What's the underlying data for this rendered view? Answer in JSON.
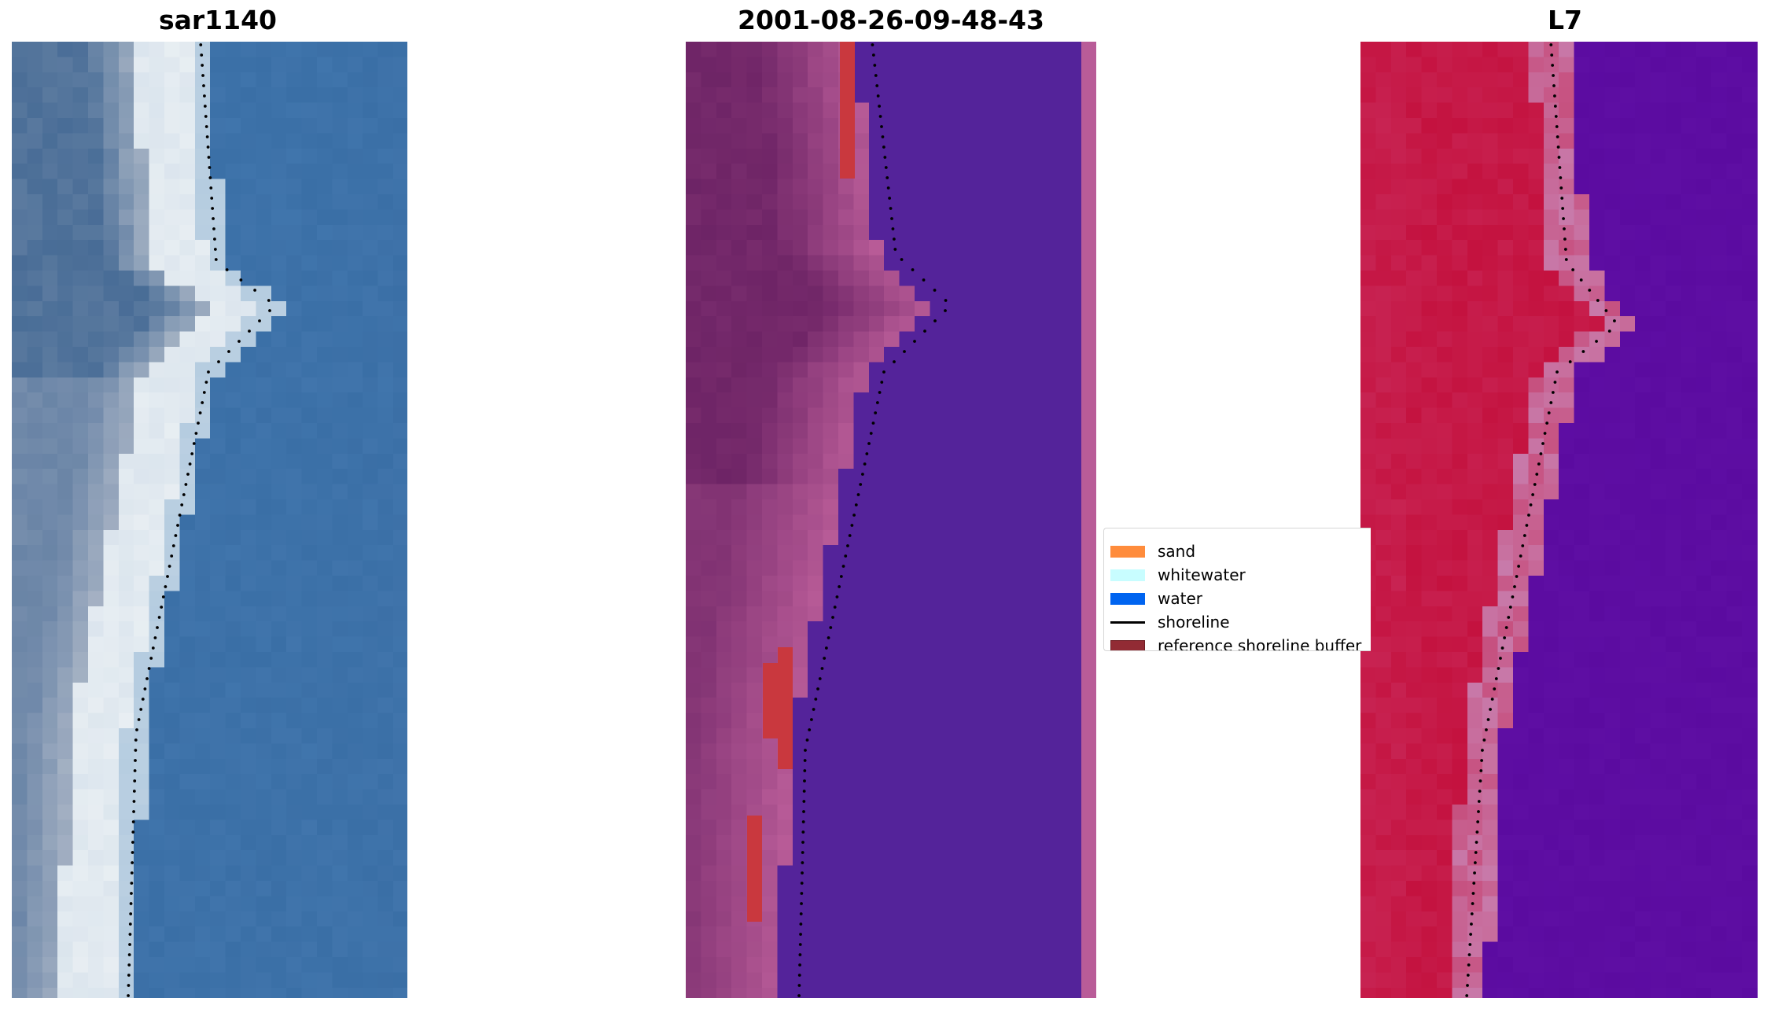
{
  "panels": [
    {
      "title": "sar1140",
      "style": "rgb"
    },
    {
      "title": "2001-08-26-09-48-43",
      "style": "classified"
    },
    {
      "title": "L7",
      "style": "index"
    }
  ],
  "legend": {
    "items": [
      {
        "label": "sand",
        "color": "#ff8c3c",
        "kind": "patch"
      },
      {
        "label": "whitewater",
        "color": "#c8fdff",
        "kind": "patch"
      },
      {
        "label": "water",
        "color": "#0064f0",
        "kind": "patch"
      },
      {
        "label": "shoreline",
        "color": "#000000",
        "kind": "line"
      },
      {
        "label": "reference shoreline buffer",
        "color": "#922b34",
        "kind": "patch-edged"
      }
    ]
  },
  "colors": {
    "water_rgb": "#3a6fa6",
    "sand_rgb": "#e9eff3",
    "classified_water": "#54239a",
    "classified_land_dark": "#6b2264",
    "classified_land_light": "#b95c98",
    "classified_buffer": "#c9383e",
    "index_land": "#c4123f",
    "index_water": "#5b0ba0",
    "index_transition": "#c87aaa"
  }
}
